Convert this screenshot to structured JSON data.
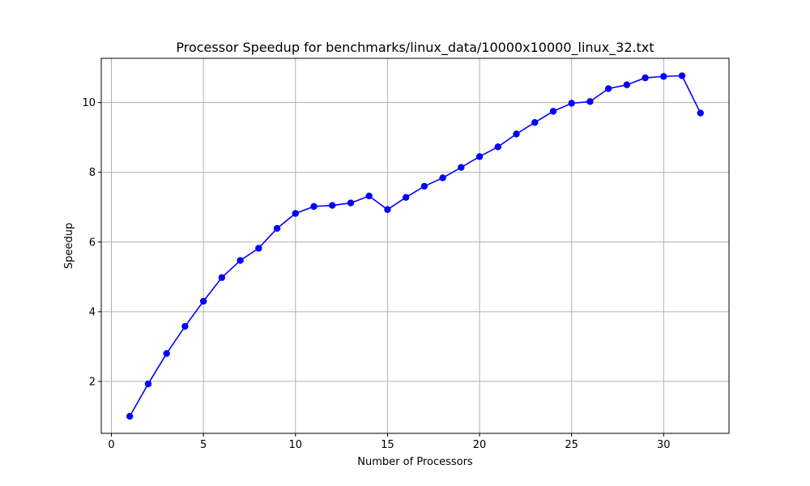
{
  "chart_data": {
    "type": "line",
    "title": "Processor Speedup for benchmarks/linux_data/10000x10000_linux_32.txt",
    "xlabel": "Number of Processors",
    "ylabel": "Speedup",
    "xlim": [
      -0.55,
      33.55
    ],
    "ylim": [
      0.51,
      11.27
    ],
    "xticks": [
      0,
      5,
      10,
      15,
      20,
      25,
      30
    ],
    "yticks": [
      2,
      4,
      6,
      8,
      10
    ],
    "grid": true,
    "series": [
      {
        "color": "#0000ff",
        "marker": "circle",
        "x": [
          1,
          2,
          3,
          4,
          5,
          6,
          7,
          8,
          9,
          10,
          11,
          12,
          13,
          14,
          15,
          16,
          17,
          18,
          19,
          20,
          21,
          22,
          23,
          24,
          25,
          26,
          27,
          28,
          29,
          30,
          31,
          32
        ],
        "y": [
          1.0,
          1.93,
          2.8,
          3.58,
          4.3,
          4.98,
          5.47,
          5.82,
          6.39,
          6.82,
          7.02,
          7.05,
          7.12,
          7.32,
          6.93,
          7.28,
          7.6,
          7.84,
          8.14,
          8.45,
          8.73,
          9.1,
          9.43,
          9.75,
          9.98,
          10.03,
          10.4,
          10.51,
          10.71,
          10.75,
          10.77,
          9.7
        ]
      }
    ]
  }
}
